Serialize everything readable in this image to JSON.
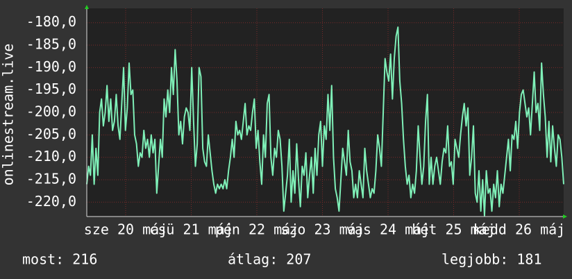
{
  "chart_data": {
    "type": "line",
    "y_label": "onlinestream.live",
    "color": "#7ff0b8",
    "x_labels": [
      "sze 20 máj",
      "csü 21 máj",
      "pén 22 máj",
      "szo 23 máj",
      "vas 24 máj",
      "hét 25 máj",
      "kedd 26 máj"
    ],
    "ylim": [
      -223.2,
      -176.8
    ],
    "yticks": [
      {
        "value": -180,
        "label": "-180,0"
      },
      {
        "value": -185,
        "label": "-185,0"
      },
      {
        "value": -190,
        "label": "-190,0"
      },
      {
        "value": -195,
        "label": "-195,0"
      },
      {
        "value": -200,
        "label": "-200,0"
      },
      {
        "value": -205,
        "label": "-205,0"
      },
      {
        "value": -210,
        "label": "-210,0"
      },
      {
        "value": -215,
        "label": "-215,0"
      },
      {
        "value": -220,
        "label": "-220,0"
      }
    ],
    "grid": true,
    "values": [
      -216,
      -212,
      -214,
      -205,
      -216,
      -208,
      -214,
      -200,
      -197,
      -203,
      -200,
      -194,
      -202,
      -197,
      -204,
      -202,
      -196,
      -203,
      -206,
      -198,
      -190,
      -204,
      -199,
      -189,
      -196,
      -195,
      -205,
      -207,
      -212,
      -209,
      -210,
      -204,
      -208,
      -206,
      -210,
      -205,
      -209,
      -206,
      -218,
      -212,
      -206,
      -210,
      -197,
      -201,
      -195,
      -200,
      -190,
      -196,
      -186,
      -193,
      -205,
      -202,
      -207,
      -201,
      -199,
      -200,
      -204,
      -190,
      -202,
      -212,
      -207,
      -190,
      -192,
      -208,
      -211,
      -212,
      -205,
      -209,
      -213,
      -216,
      -218,
      -216,
      -217,
      -216,
      -217,
      -215,
      -217,
      -213,
      -210,
      -206,
      -210,
      -202,
      -205,
      -204,
      -206,
      -202,
      -198,
      -205,
      -203,
      -204,
      -200,
      -197,
      -208,
      -204,
      -211,
      -216,
      -205,
      -210,
      -198,
      -196,
      -210,
      -214,
      -208,
      -210,
      -204,
      -206,
      -212,
      -222,
      -218,
      -214,
      -206,
      -220,
      -213,
      -218,
      -207,
      -215,
      -221,
      -212,
      -214,
      -209,
      -219,
      -214,
      -210,
      -218,
      -208,
      -214,
      -205,
      -202,
      -212,
      -203,
      -206,
      -196,
      -204,
      -194,
      -210,
      -217,
      -219,
      -222,
      -215,
      -208,
      -211,
      -214,
      -204,
      -211,
      -213,
      -219,
      -216,
      -219,
      -213,
      -216,
      -219,
      -208,
      -213,
      -216,
      -219,
      -217,
      -218,
      -213,
      -205,
      -208,
      -212,
      -200,
      -188,
      -191,
      -193,
      -187,
      -197,
      -188,
      -183,
      -181,
      -193,
      -198,
      -206,
      -212,
      -216,
      -214,
      -219,
      -216,
      -218,
      -213,
      -203,
      -210,
      -216,
      -212,
      -202,
      -196,
      -216,
      -210,
      -216,
      -212,
      -210,
      -213,
      -216,
      -211,
      -208,
      -209,
      -203,
      -212,
      -211,
      -216,
      -206,
      -208,
      -210,
      -205,
      -201,
      -198,
      -203,
      -199,
      -214,
      -210,
      -203,
      -218,
      -220,
      -213,
      -222,
      -215,
      -223,
      -213,
      -218,
      -217,
      -222,
      -216,
      -219,
      -213,
      -221,
      -216,
      -218,
      -214,
      -210,
      -206,
      -213,
      -205,
      -206,
      -202,
      -208,
      -200,
      -196,
      -195,
      -198,
      -201,
      -199,
      -205,
      -198,
      -191,
      -200,
      -198,
      -204,
      -189,
      -196,
      -201,
      -210,
      -202,
      -211,
      -203,
      -208,
      -212,
      -205,
      -206,
      -210,
      -216
    ],
    "footer": [
      "most: 216",
      "átlag: 207",
      "legjobb: 181"
    ]
  }
}
